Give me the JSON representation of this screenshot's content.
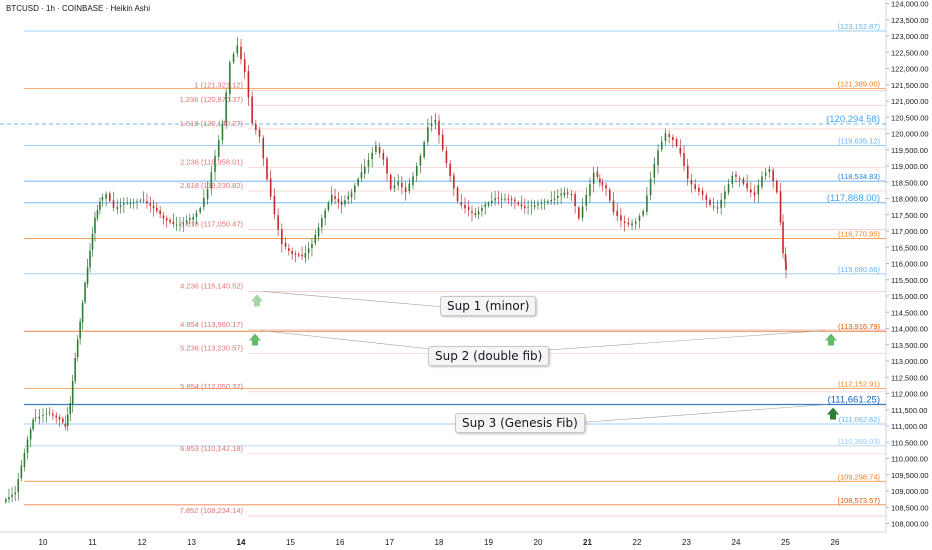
{
  "header": {
    "title": "BTCUSD · 1h · COINBASE · Heikin Ashi"
  },
  "chart_data": {
    "type": "candlestick",
    "chart_style": "Heikin Ashi",
    "ylim": [
      107700,
      124100
    ],
    "y_ticks": [
      108000,
      108500,
      109000,
      109500,
      110000,
      110500,
      111000,
      111500,
      112000,
      112500,
      113000,
      113500,
      114000,
      114500,
      115000,
      115500,
      116000,
      116500,
      117000,
      117500,
      118000,
      118500,
      119000,
      119500,
      120000,
      120500,
      121000,
      121500,
      122000,
      122500,
      123000,
      123500,
      124000
    ],
    "y_tick_labels": [
      "108,000.00",
      "108,500.00",
      "109,000.00",
      "109,500.00",
      "110,000.00",
      "110,500.00",
      "111,000.00",
      "111,500.00",
      "112,000.00",
      "112,500.00",
      "113,000.00",
      "113,500.00",
      "114,000.00",
      "114,500.00",
      "115,000.00",
      "115,500.00",
      "116,000.00",
      "116,500.00",
      "117,000.00",
      "117,500.00",
      "118,000.00",
      "118,500.00",
      "119,000.00",
      "119,500.00",
      "120,000.00",
      "120,500.00",
      "121,000.00",
      "121,500.00",
      "122,000.00",
      "122,500.00",
      "123,000.00",
      "123,500.00",
      "124,000.00"
    ],
    "x_ticks": [
      {
        "label": "10",
        "day": 10,
        "bold": false
      },
      {
        "label": "11",
        "day": 11,
        "bold": false
      },
      {
        "label": "12",
        "day": 12,
        "bold": false
      },
      {
        "label": "13",
        "day": 13,
        "bold": false
      },
      {
        "label": "14",
        "day": 14,
        "bold": true
      },
      {
        "label": "15",
        "day": 15,
        "bold": false
      },
      {
        "label": "16",
        "day": 16,
        "bold": false
      },
      {
        "label": "17",
        "day": 17,
        "bold": false
      },
      {
        "label": "18",
        "day": 18,
        "bold": false
      },
      {
        "label": "19",
        "day": 19,
        "bold": false
      },
      {
        "label": "20",
        "day": 20,
        "bold": false
      },
      {
        "label": "21",
        "day": 21,
        "bold": true
      },
      {
        "label": "22",
        "day": 22,
        "bold": false
      },
      {
        "label": "23",
        "day": 23,
        "bold": false
      },
      {
        "label": "24",
        "day": 24,
        "bold": false
      },
      {
        "label": "25",
        "day": 25,
        "bold": false
      },
      {
        "label": "26",
        "day": 26,
        "bold": false
      }
    ],
    "price_path": [
      [
        9.25,
        108700
      ],
      [
        9.5,
        108950
      ],
      [
        9.75,
        110600
      ],
      [
        9.85,
        111200
      ],
      [
        10.0,
        111300
      ],
      [
        10.2,
        111400
      ],
      [
        10.4,
        111200
      ],
      [
        10.5,
        111000
      ],
      [
        10.6,
        111700
      ],
      [
        10.7,
        113100
      ],
      [
        10.8,
        114200
      ],
      [
        10.9,
        115400
      ],
      [
        11.0,
        116400
      ],
      [
        11.1,
        117400
      ],
      [
        11.2,
        117900
      ],
      [
        11.35,
        118150
      ],
      [
        11.5,
        117700
      ],
      [
        11.7,
        117850
      ],
      [
        11.9,
        117900
      ],
      [
        12.1,
        117950
      ],
      [
        12.3,
        117700
      ],
      [
        12.5,
        117400
      ],
      [
        12.7,
        117200
      ],
      [
        12.9,
        117250
      ],
      [
        13.1,
        117450
      ],
      [
        13.25,
        117700
      ],
      [
        13.4,
        118300
      ],
      [
        13.55,
        119300
      ],
      [
        13.7,
        120300
      ],
      [
        13.85,
        122200
      ],
      [
        14.0,
        122700
      ],
      [
        14.15,
        121900
      ],
      [
        14.3,
        120300
      ],
      [
        14.45,
        119900
      ],
      [
        14.6,
        118600
      ],
      [
        14.75,
        117500
      ],
      [
        14.9,
        116600
      ],
      [
        15.1,
        116300
      ],
      [
        15.3,
        116200
      ],
      [
        15.5,
        116600
      ],
      [
        15.7,
        117400
      ],
      [
        15.9,
        118100
      ],
      [
        16.1,
        117800
      ],
      [
        16.3,
        118200
      ],
      [
        16.5,
        118800
      ],
      [
        16.65,
        119200
      ],
      [
        16.8,
        119600
      ],
      [
        16.95,
        119200
      ],
      [
        17.1,
        118300
      ],
      [
        17.25,
        118500
      ],
      [
        17.4,
        118200
      ],
      [
        17.55,
        118700
      ],
      [
        17.7,
        119300
      ],
      [
        17.85,
        120200
      ],
      [
        18.0,
        120400
      ],
      [
        18.15,
        119500
      ],
      [
        18.3,
        118700
      ],
      [
        18.45,
        117900
      ],
      [
        18.6,
        117700
      ],
      [
        18.8,
        117500
      ],
      [
        19.0,
        117800
      ],
      [
        19.2,
        118000
      ],
      [
        19.4,
        118000
      ],
      [
        19.6,
        117900
      ],
      [
        19.8,
        117700
      ],
      [
        20.0,
        117800
      ],
      [
        20.2,
        117900
      ],
      [
        20.4,
        118000
      ],
      [
        20.6,
        118200
      ],
      [
        20.75,
        118100
      ],
      [
        20.9,
        117400
      ],
      [
        21.05,
        118100
      ],
      [
        21.2,
        118800
      ],
      [
        21.3,
        118500
      ],
      [
        21.45,
        118300
      ],
      [
        21.6,
        117600
      ],
      [
        21.75,
        117300
      ],
      [
        21.9,
        117200
      ],
      [
        22.05,
        117300
      ],
      [
        22.2,
        117600
      ],
      [
        22.35,
        118600
      ],
      [
        22.5,
        119500
      ],
      [
        22.65,
        120000
      ],
      [
        22.8,
        119800
      ],
      [
        22.95,
        119400
      ],
      [
        23.1,
        118600
      ],
      [
        23.25,
        118300
      ],
      [
        23.4,
        118100
      ],
      [
        23.55,
        117800
      ],
      [
        23.7,
        117700
      ],
      [
        23.85,
        118200
      ],
      [
        24.0,
        118700
      ],
      [
        24.15,
        118600
      ],
      [
        24.3,
        118300
      ],
      [
        24.45,
        118100
      ],
      [
        24.6,
        118700
      ],
      [
        24.75,
        118900
      ],
      [
        24.9,
        118200
      ],
      [
        25.0,
        116300
      ],
      [
        25.02,
        115800
      ]
    ],
    "fib_levels_right": [
      {
        "label": "(123,152.87)",
        "price": 123152.87,
        "color": "#64b5f6",
        "style": "solid"
      },
      {
        "label": "(121,389.00)",
        "price": 121389.0,
        "color": "#f57f17",
        "style": "solid"
      },
      {
        "label": "(120,294.58)",
        "price": 120294.58,
        "color": "#42a5f5",
        "style": "dashed"
      },
      {
        "label": "(119,635.12)",
        "price": 119635.12,
        "color": "#64b5f6",
        "style": "solid"
      },
      {
        "label": "(118,534.83)",
        "price": 118534.83,
        "color": "#1e88e5",
        "style": "solid"
      },
      {
        "label": "(117,868.00)",
        "price": 117868.0,
        "color": "#42a5f5",
        "style": "solid"
      },
      {
        "label": "(116,770.95)",
        "price": 116770.95,
        "color": "#f57f17",
        "style": "solid"
      },
      {
        "label": "(115,680.66)",
        "price": 115680.66,
        "color": "#64b5f6",
        "style": "solid"
      },
      {
        "label": "(113,916.79)",
        "price": 113916.79,
        "color": "#e65100",
        "style": "solid"
      },
      {
        "label": "(112,152.91)",
        "price": 112152.91,
        "color": "#f57f17",
        "style": "solid"
      },
      {
        "label": "(111,661.25)",
        "price": 111661.25,
        "color": "#1565c0",
        "style": "solid"
      },
      {
        "label": "(111,062.62)",
        "price": 111062.62,
        "color": "#64b5f6",
        "style": "solid"
      },
      {
        "label": "(110,389.03)",
        "price": 110389.03,
        "color": "#90caf9",
        "style": "solid"
      },
      {
        "label": "(109,298.74)",
        "price": 109298.74,
        "color": "#f57f17",
        "style": "solid"
      },
      {
        "label": "(108,573.57)",
        "price": 108573.57,
        "color": "#e65100",
        "style": "solid"
      }
    ],
    "fib_levels_left": [
      {
        "label": "1 (121,321.12)",
        "price": 121321.12
      },
      {
        "label": "1.236 (120,870.37)",
        "price": 120870.37
      },
      {
        "label": "1.618 (120,140.27)",
        "price": 120140.27
      },
      {
        "label": "2.236 (118,958.01)",
        "price": 118958.01
      },
      {
        "label": "2.618 (118,230.82)",
        "price": 118230.82
      },
      {
        "label": "3.618 (117,050.47)",
        "price": 117050.47
      },
      {
        "label": "4.236 (115,140.52)",
        "price": 115140.52
      },
      {
        "label": "4.854 (113,960.17)",
        "price": 113960.17
      },
      {
        "label": "5.236 (113,230.57)",
        "price": 113230.57
      },
      {
        "label": "5.854 (112,050.32)",
        "price": 112050.32
      },
      {
        "label": "6.853 (110,142.18)",
        "price": 110142.18
      },
      {
        "label": "7.852 (108,234.14)",
        "price": 108234.14
      }
    ],
    "annotations": [
      {
        "label": "Sup 1 (minor)",
        "price": 115140.52
      },
      {
        "label": "Sup 2 (double fib)",
        "price": 113938.48
      },
      {
        "label": "Sup 3 (Genesis Fib)",
        "price": 111661.25
      }
    ],
    "colors": {
      "up": "#26a69a",
      "down": "#ef5350",
      "up_dark": "#1b5e20",
      "down_dark": "#b71c1c",
      "axis_text": "#131722"
    }
  }
}
